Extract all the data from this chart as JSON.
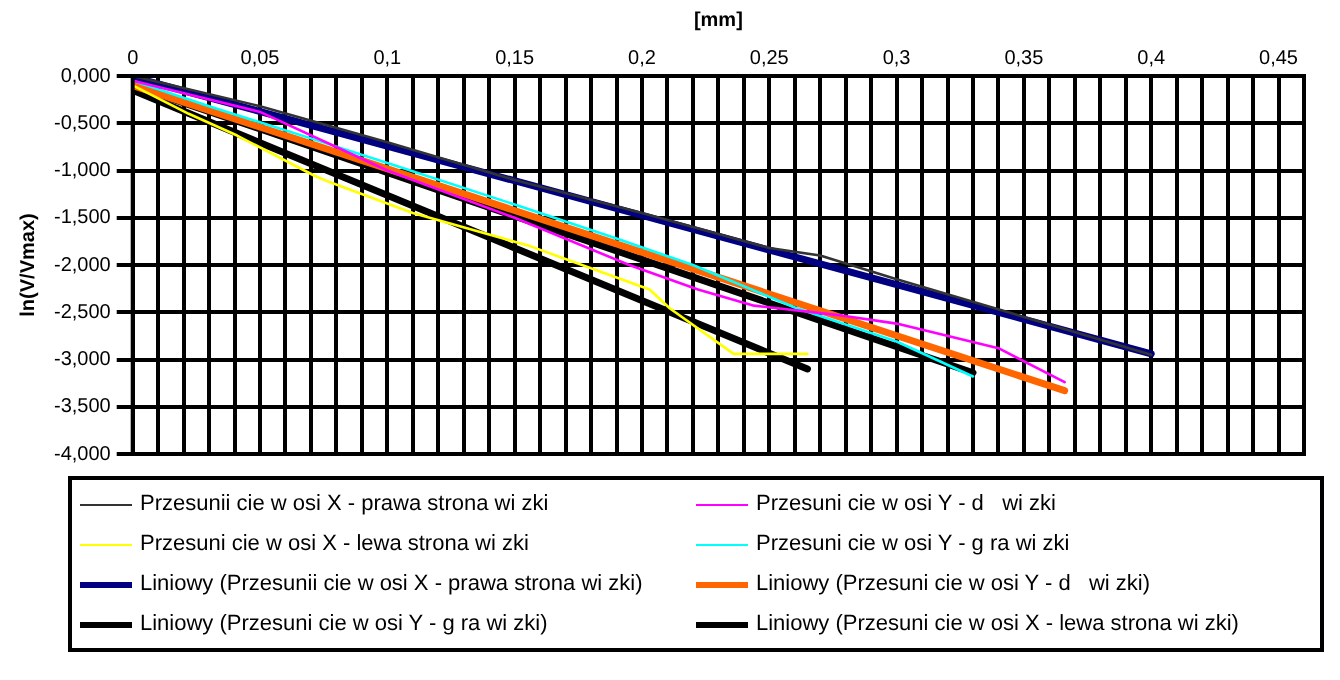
{
  "chart_data": {
    "type": "line",
    "xlabel": "[mm]",
    "ylabel": "ln(V/Vmax)",
    "xlim": [
      0,
      0.46
    ],
    "ylim": [
      -4,
      0
    ],
    "xticks": [
      {
        "value": 0,
        "label": "0"
      },
      {
        "value": 0.01,
        "label": null
      },
      {
        "value": 0.02,
        "label": null
      },
      {
        "value": 0.03,
        "label": null
      },
      {
        "value": 0.04,
        "label": null
      },
      {
        "value": 0.05,
        "label": "0,05"
      },
      {
        "value": 0.06,
        "label": null
      },
      {
        "value": 0.07,
        "label": null
      },
      {
        "value": 0.08,
        "label": null
      },
      {
        "value": 0.09,
        "label": null
      },
      {
        "value": 0.1,
        "label": "0,1"
      },
      {
        "value": 0.11,
        "label": null
      },
      {
        "value": 0.12,
        "label": null
      },
      {
        "value": 0.13,
        "label": null
      },
      {
        "value": 0.14,
        "label": null
      },
      {
        "value": 0.15,
        "label": "0,15"
      },
      {
        "value": 0.16,
        "label": null
      },
      {
        "value": 0.17,
        "label": null
      },
      {
        "value": 0.18,
        "label": null
      },
      {
        "value": 0.19,
        "label": null
      },
      {
        "value": 0.2,
        "label": "0,2"
      },
      {
        "value": 0.21,
        "label": null
      },
      {
        "value": 0.22,
        "label": null
      },
      {
        "value": 0.23,
        "label": null
      },
      {
        "value": 0.24,
        "label": null
      },
      {
        "value": 0.25,
        "label": "0,25"
      },
      {
        "value": 0.26,
        "label": null
      },
      {
        "value": 0.27,
        "label": null
      },
      {
        "value": 0.28,
        "label": null
      },
      {
        "value": 0.29,
        "label": null
      },
      {
        "value": 0.3,
        "label": "0,3"
      },
      {
        "value": 0.31,
        "label": null
      },
      {
        "value": 0.32,
        "label": null
      },
      {
        "value": 0.33,
        "label": null
      },
      {
        "value": 0.34,
        "label": null
      },
      {
        "value": 0.35,
        "label": "0,35"
      },
      {
        "value": 0.36,
        "label": null
      },
      {
        "value": 0.37,
        "label": null
      },
      {
        "value": 0.38,
        "label": null
      },
      {
        "value": 0.39,
        "label": null
      },
      {
        "value": 0.4,
        "label": "0,4"
      },
      {
        "value": 0.41,
        "label": null
      },
      {
        "value": 0.42,
        "label": null
      },
      {
        "value": 0.43,
        "label": null
      },
      {
        "value": 0.44,
        "label": null
      },
      {
        "value": 0.45,
        "label": "0,45"
      },
      {
        "value": 0.46,
        "label": null
      }
    ],
    "yticks": [
      {
        "value": 0,
        "label": "0,000"
      },
      {
        "value": -0.5,
        "label": "-0,500"
      },
      {
        "value": -1,
        "label": "-1,000"
      },
      {
        "value": -1.5,
        "label": "-1,500"
      },
      {
        "value": -2,
        "label": "-2,000"
      },
      {
        "value": -2.5,
        "label": "-2,500"
      },
      {
        "value": -3,
        "label": "-3,000"
      },
      {
        "value": -3.5,
        "label": "-3,500"
      },
      {
        "value": -4,
        "label": "-4,000"
      }
    ],
    "grid": true,
    "legend": "bottom",
    "marker": "none",
    "series": [
      {
        "name": "Przesunii cie w osi X - prawa strona wi zki",
        "color": "#333333",
        "x": [
          0,
          0.05,
          0.1,
          0.15,
          0.2,
          0.25,
          0.27,
          0.3,
          0.35,
          0.4
        ],
        "values": [
          0,
          -0.32,
          -0.7,
          -1.1,
          -1.45,
          -1.82,
          -1.9,
          -2.15,
          -2.55,
          -2.95
        ]
      },
      {
        "name": "Przesuni cie w osi Y - d   wi zki",
        "color": "#ff00ff",
        "x": [
          0,
          0.05,
          0.1,
          0.15,
          0.195,
          0.222,
          0.244,
          0.277,
          0.3,
          0.34,
          0.366
        ],
        "values": [
          -0.05,
          -0.38,
          -1.0,
          -1.5,
          -2.0,
          -2.26,
          -2.43,
          -2.53,
          -2.62,
          -2.88,
          -3.24
        ]
      },
      {
        "name": "Przesuni cie w osi X - lewa strona wi zki",
        "color": "#ffff00",
        "x": [
          0,
          0.022,
          0.041,
          0.071,
          0.077,
          0.11,
          0.156,
          0.203,
          0.211,
          0.236,
          0.265
        ],
        "values": [
          -0.1,
          -0.4,
          -0.63,
          -1.05,
          -1.12,
          -1.45,
          -1.8,
          -2.26,
          -2.46,
          -2.94,
          -2.94
        ]
      },
      {
        "name": "Przesuni cie w osi Y - g ra wi zki",
        "color": "#00ffff",
        "x": [
          0,
          0.03,
          0.07,
          0.1,
          0.15,
          0.19,
          0.22,
          0.26,
          0.3,
          0.33
        ],
        "values": [
          -0.05,
          -0.32,
          -0.66,
          -0.92,
          -1.36,
          -1.72,
          -2.0,
          -2.45,
          -2.81,
          -3.18
        ]
      },
      {
        "name": "Liniowy (Przesunii cie w osi X - prawa strona wi zki)",
        "type": "line",
        "color": "#000080",
        "x": [
          0,
          0.4
        ],
        "values": [
          -0.01,
          -2.94
        ]
      },
      {
        "name": "Liniowy (Przesuni cie w osi Y - d   wi zki)",
        "type": "line",
        "color": "#ff6600",
        "x": [
          0,
          0.366
        ],
        "values": [
          -0.1,
          -3.33
        ]
      },
      {
        "name": "Liniowy (Przesuni cie w osi Y - g ra wi zki)",
        "type": "line",
        "color": "#000000",
        "x": [
          0,
          0.33
        ],
        "values": [
          -0.1,
          -3.14
        ]
      },
      {
        "name": "Liniowy (Przesuni cie w osi X - lewa strona wi zki)",
        "type": "line",
        "color": "#000000",
        "x": [
          0,
          0.265
        ],
        "values": [
          -0.15,
          -3.1
        ]
      }
    ]
  }
}
